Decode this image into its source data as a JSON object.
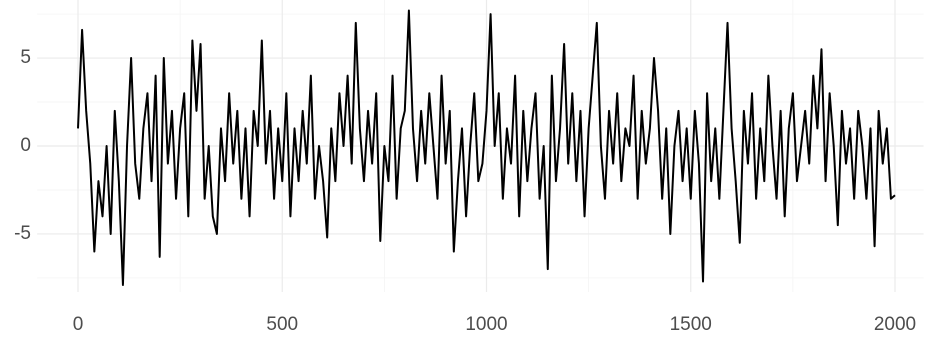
{
  "chart_data": {
    "type": "line",
    "color": "#000000",
    "grid": true,
    "xlim": [
      -100,
      2070
    ],
    "ylim": [
      -8.3,
      8.3
    ],
    "xticks": [
      0,
      500,
      1000,
      1500,
      2000
    ],
    "yticks": [
      -5,
      0,
      5
    ],
    "x_minor_ticks": [
      250,
      750,
      1250,
      1750
    ],
    "y_minor_ticks": [
      -7.5,
      -2.5,
      2.5,
      7.5
    ],
    "x": [
      0,
      10,
      20,
      30,
      40,
      50,
      60,
      70,
      80,
      90,
      100,
      110,
      120,
      130,
      140,
      150,
      160,
      170,
      180,
      190,
      200,
      210,
      220,
      230,
      240,
      250,
      260,
      270,
      280,
      290,
      300,
      310,
      320,
      330,
      340,
      350,
      360,
      370,
      380,
      390,
      400,
      410,
      420,
      430,
      440,
      450,
      460,
      470,
      480,
      490,
      500,
      510,
      520,
      530,
      540,
      550,
      560,
      570,
      580,
      590,
      600,
      610,
      620,
      630,
      640,
      650,
      660,
      670,
      680,
      690,
      700,
      710,
      720,
      730,
      740,
      750,
      760,
      770,
      780,
      790,
      800,
      810,
      820,
      830,
      840,
      850,
      860,
      870,
      880,
      890,
      900,
      910,
      920,
      930,
      940,
      950,
      960,
      970,
      980,
      990,
      1000,
      1010,
      1020,
      1030,
      1040,
      1050,
      1060,
      1070,
      1080,
      1090,
      1100,
      1110,
      1120,
      1130,
      1140,
      1150,
      1160,
      1170,
      1180,
      1190,
      1200,
      1210,
      1220,
      1230,
      1240,
      1250,
      1260,
      1270,
      1280,
      1290,
      1300,
      1310,
      1320,
      1330,
      1340,
      1350,
      1360,
      1370,
      1380,
      1390,
      1400,
      1410,
      1420,
      1430,
      1440,
      1450,
      1460,
      1470,
      1480,
      1490,
      1500,
      1510,
      1520,
      1530,
      1540,
      1550,
      1560,
      1570,
      1580,
      1590,
      1600,
      1610,
      1620,
      1630,
      1640,
      1650,
      1660,
      1670,
      1680,
      1690,
      1700,
      1710,
      1720,
      1730,
      1740,
      1750,
      1760,
      1770,
      1780,
      1790,
      1800,
      1810,
      1820,
      1830,
      1840,
      1850,
      1860,
      1870,
      1880,
      1890,
      1900,
      1910,
      1920,
      1930,
      1940,
      1950,
      1960,
      1970,
      1980,
      1990,
      2000
    ],
    "values": [
      1,
      6.6,
      2,
      -1,
      -6,
      -2,
      -4,
      0,
      -5,
      2,
      -2,
      -7.9,
      0,
      5,
      -1,
      -3,
      1,
      3,
      -2,
      4,
      -6.3,
      5,
      -1,
      2,
      -3,
      1,
      3,
      -4,
      6,
      2,
      5.8,
      -3,
      0,
      -4,
      -5,
      1,
      -2,
      3,
      -1,
      2,
      -3,
      1,
      -4,
      2,
      0,
      6,
      -1,
      2,
      -3,
      1,
      -2,
      3,
      -4,
      1,
      -2,
      2,
      -1,
      4,
      -3,
      0,
      -2,
      -5.2,
      1,
      -2,
      3,
      0,
      4,
      -1,
      7,
      1,
      -2,
      2,
      -1,
      3,
      -5.4,
      0,
      -2,
      4,
      -3,
      1,
      2,
      7.7,
      1,
      -2,
      2,
      -1,
      3,
      0,
      -3,
      4,
      -1,
      2,
      -6,
      -2,
      1,
      -4,
      0,
      3,
      -2,
      -1,
      2,
      7.5,
      0,
      3,
      -3,
      1,
      -1,
      4,
      -4,
      2,
      -2,
      1,
      3,
      -3,
      0,
      -7,
      4,
      -2,
      1,
      5.8,
      -1,
      3,
      -2,
      2,
      -4,
      1,
      4,
      7,
      0,
      -3,
      2,
      -1,
      3,
      -2,
      1,
      0,
      4,
      -3,
      2,
      -1,
      1,
      5,
      2,
      -3,
      1,
      -5,
      0,
      2,
      -2,
      1,
      -3,
      2,
      -1,
      -7.7,
      3,
      -2,
      1,
      -3,
      2,
      7,
      1,
      -2,
      -5.5,
      2,
      -1,
      3,
      -3,
      1,
      -2,
      4,
      0,
      -3,
      2,
      -4,
      1,
      3,
      -2,
      0,
      2,
      -1,
      4,
      1,
      5.5,
      -2,
      3,
      0,
      -4.5,
      2,
      -1,
      1,
      -3,
      2,
      0,
      -3,
      1,
      -5.7,
      2,
      -1,
      1,
      -3,
      -2.8
    ]
  }
}
